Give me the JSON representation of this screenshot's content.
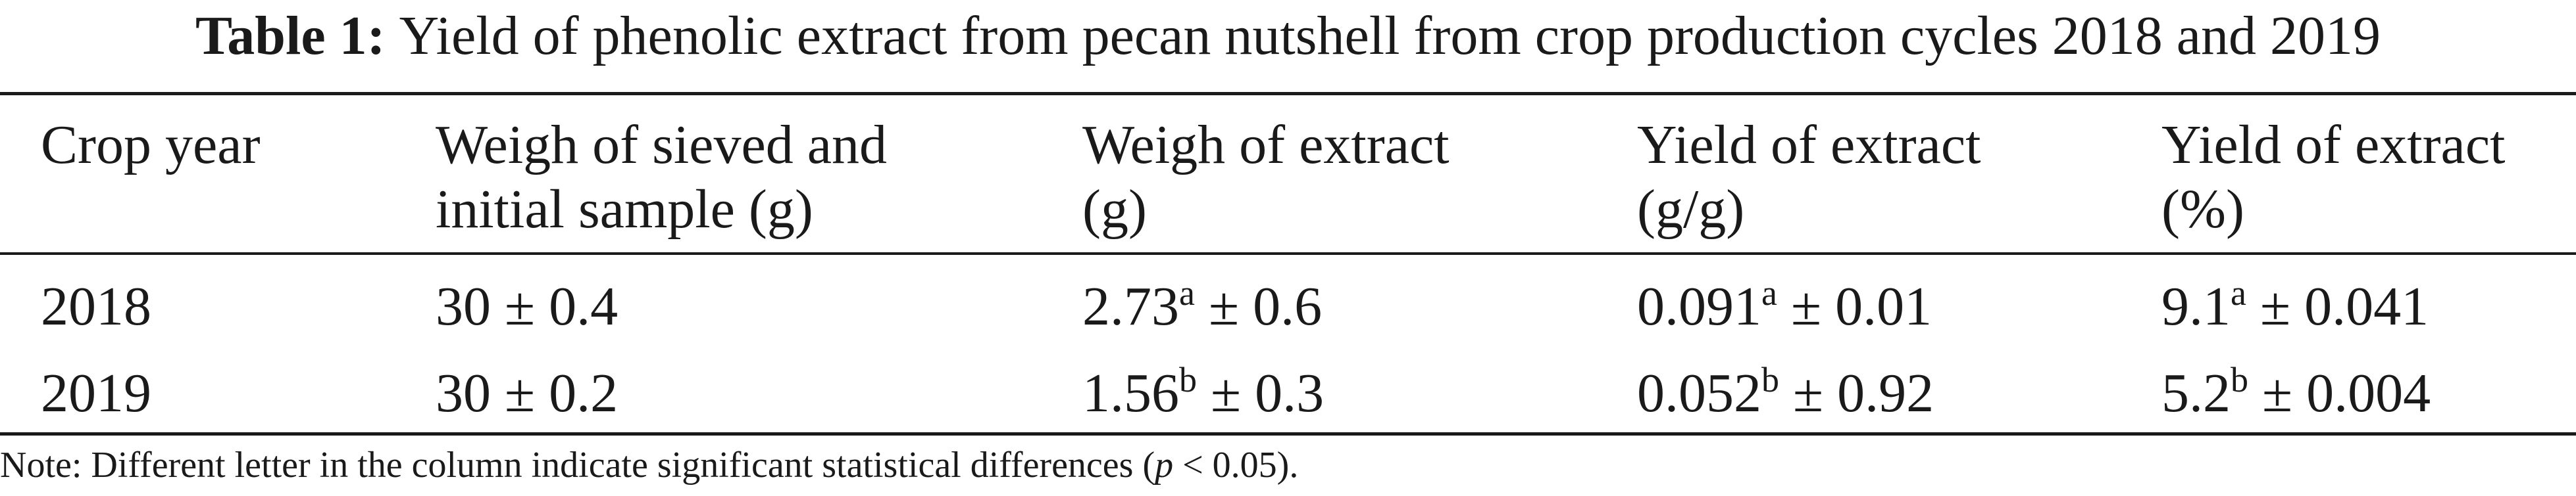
{
  "caption": {
    "label": "Table 1:",
    "text": "Yield of phenolic extract from pecan nutshell from crop production cycles 2018 and 2019"
  },
  "headers": [
    {
      "line1": "Crop year",
      "line2": ""
    },
    {
      "line1": "Weigh of sieved and",
      "line2": "initial sample (g)"
    },
    {
      "line1": "Weigh of extract",
      "line2": "(g)"
    },
    {
      "line1": "Yield of extract",
      "line2": "(g/g)"
    },
    {
      "line1": "Yield of extract",
      "line2": "(%)"
    }
  ],
  "rows": [
    {
      "year": "2018",
      "sample": "30 ± 0.4",
      "extract": {
        "value": "2.73",
        "letter": "a",
        "sd": " ± 0.6"
      },
      "yield_gg": {
        "value": "0.091",
        "letter": "a",
        "sd": " ± 0.01"
      },
      "yield_pct": {
        "value": "9.1",
        "letter": "a",
        "sd": " ± 0.041"
      }
    },
    {
      "year": "2019",
      "sample": "30 ± 0.2",
      "extract": {
        "value": "1.56",
        "letter": "b",
        "sd": " ± 0.3"
      },
      "yield_gg": {
        "value": "0.052",
        "letter": "b",
        "sd": " ± 0.92"
      },
      "yield_pct": {
        "value": "5.2",
        "letter": "b",
        "sd": " ± 0.004"
      }
    }
  ],
  "note": {
    "prefix": "Note: Different letter in the column indicate significant statistical differences (",
    "p": "p",
    "suffix": " < 0.05)."
  }
}
